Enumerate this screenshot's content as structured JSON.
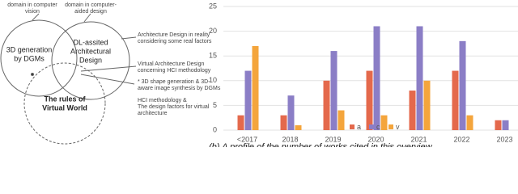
{
  "diagram": {
    "top_labels": [
      [
        "domain in computer",
        "vision"
      ],
      [
        "domain in computer-",
        "aided design"
      ]
    ],
    "circles": [
      [
        "3D generation",
        "by DGMs"
      ],
      [
        "DL-assited",
        "Architectural",
        "Design"
      ],
      [
        "The rules of",
        "Virtual World"
      ]
    ],
    "annotations": [
      [
        "Architecture Design in reality",
        "considering some real factors"
      ],
      [
        "Virtual Architecture Design",
        "concerning HCI methodology"
      ],
      [
        "* 3D shape generation & 3D-",
        "aware image synthesis by DGMs"
      ],
      [
        "HCI methodology &",
        "The design factors for virtual",
        "architecture"
      ]
    ]
  },
  "chart_data": {
    "type": "bar",
    "categories": [
      "<2017",
      "2018",
      "2019",
      "2020",
      "2021",
      "2022",
      "2023"
    ],
    "series": [
      {
        "name": "a",
        "color": "#e4694c",
        "values": [
          3,
          3,
          10,
          12,
          8,
          12,
          2
        ]
      },
      {
        "name": "c",
        "color": "#8b7ec6",
        "values": [
          12,
          7,
          16,
          21,
          21,
          18,
          2
        ]
      },
      {
        "name": "v",
        "color": "#f4a53c",
        "values": [
          17,
          1,
          4,
          3,
          10,
          3,
          0
        ]
      }
    ],
    "ylim": [
      0,
      25
    ],
    "yticks": [
      0,
      5,
      10,
      15,
      20,
      25
    ],
    "grid": true,
    "legend": "bottom",
    "caption": "(b) A profile of the number of works cited in this overview"
  }
}
